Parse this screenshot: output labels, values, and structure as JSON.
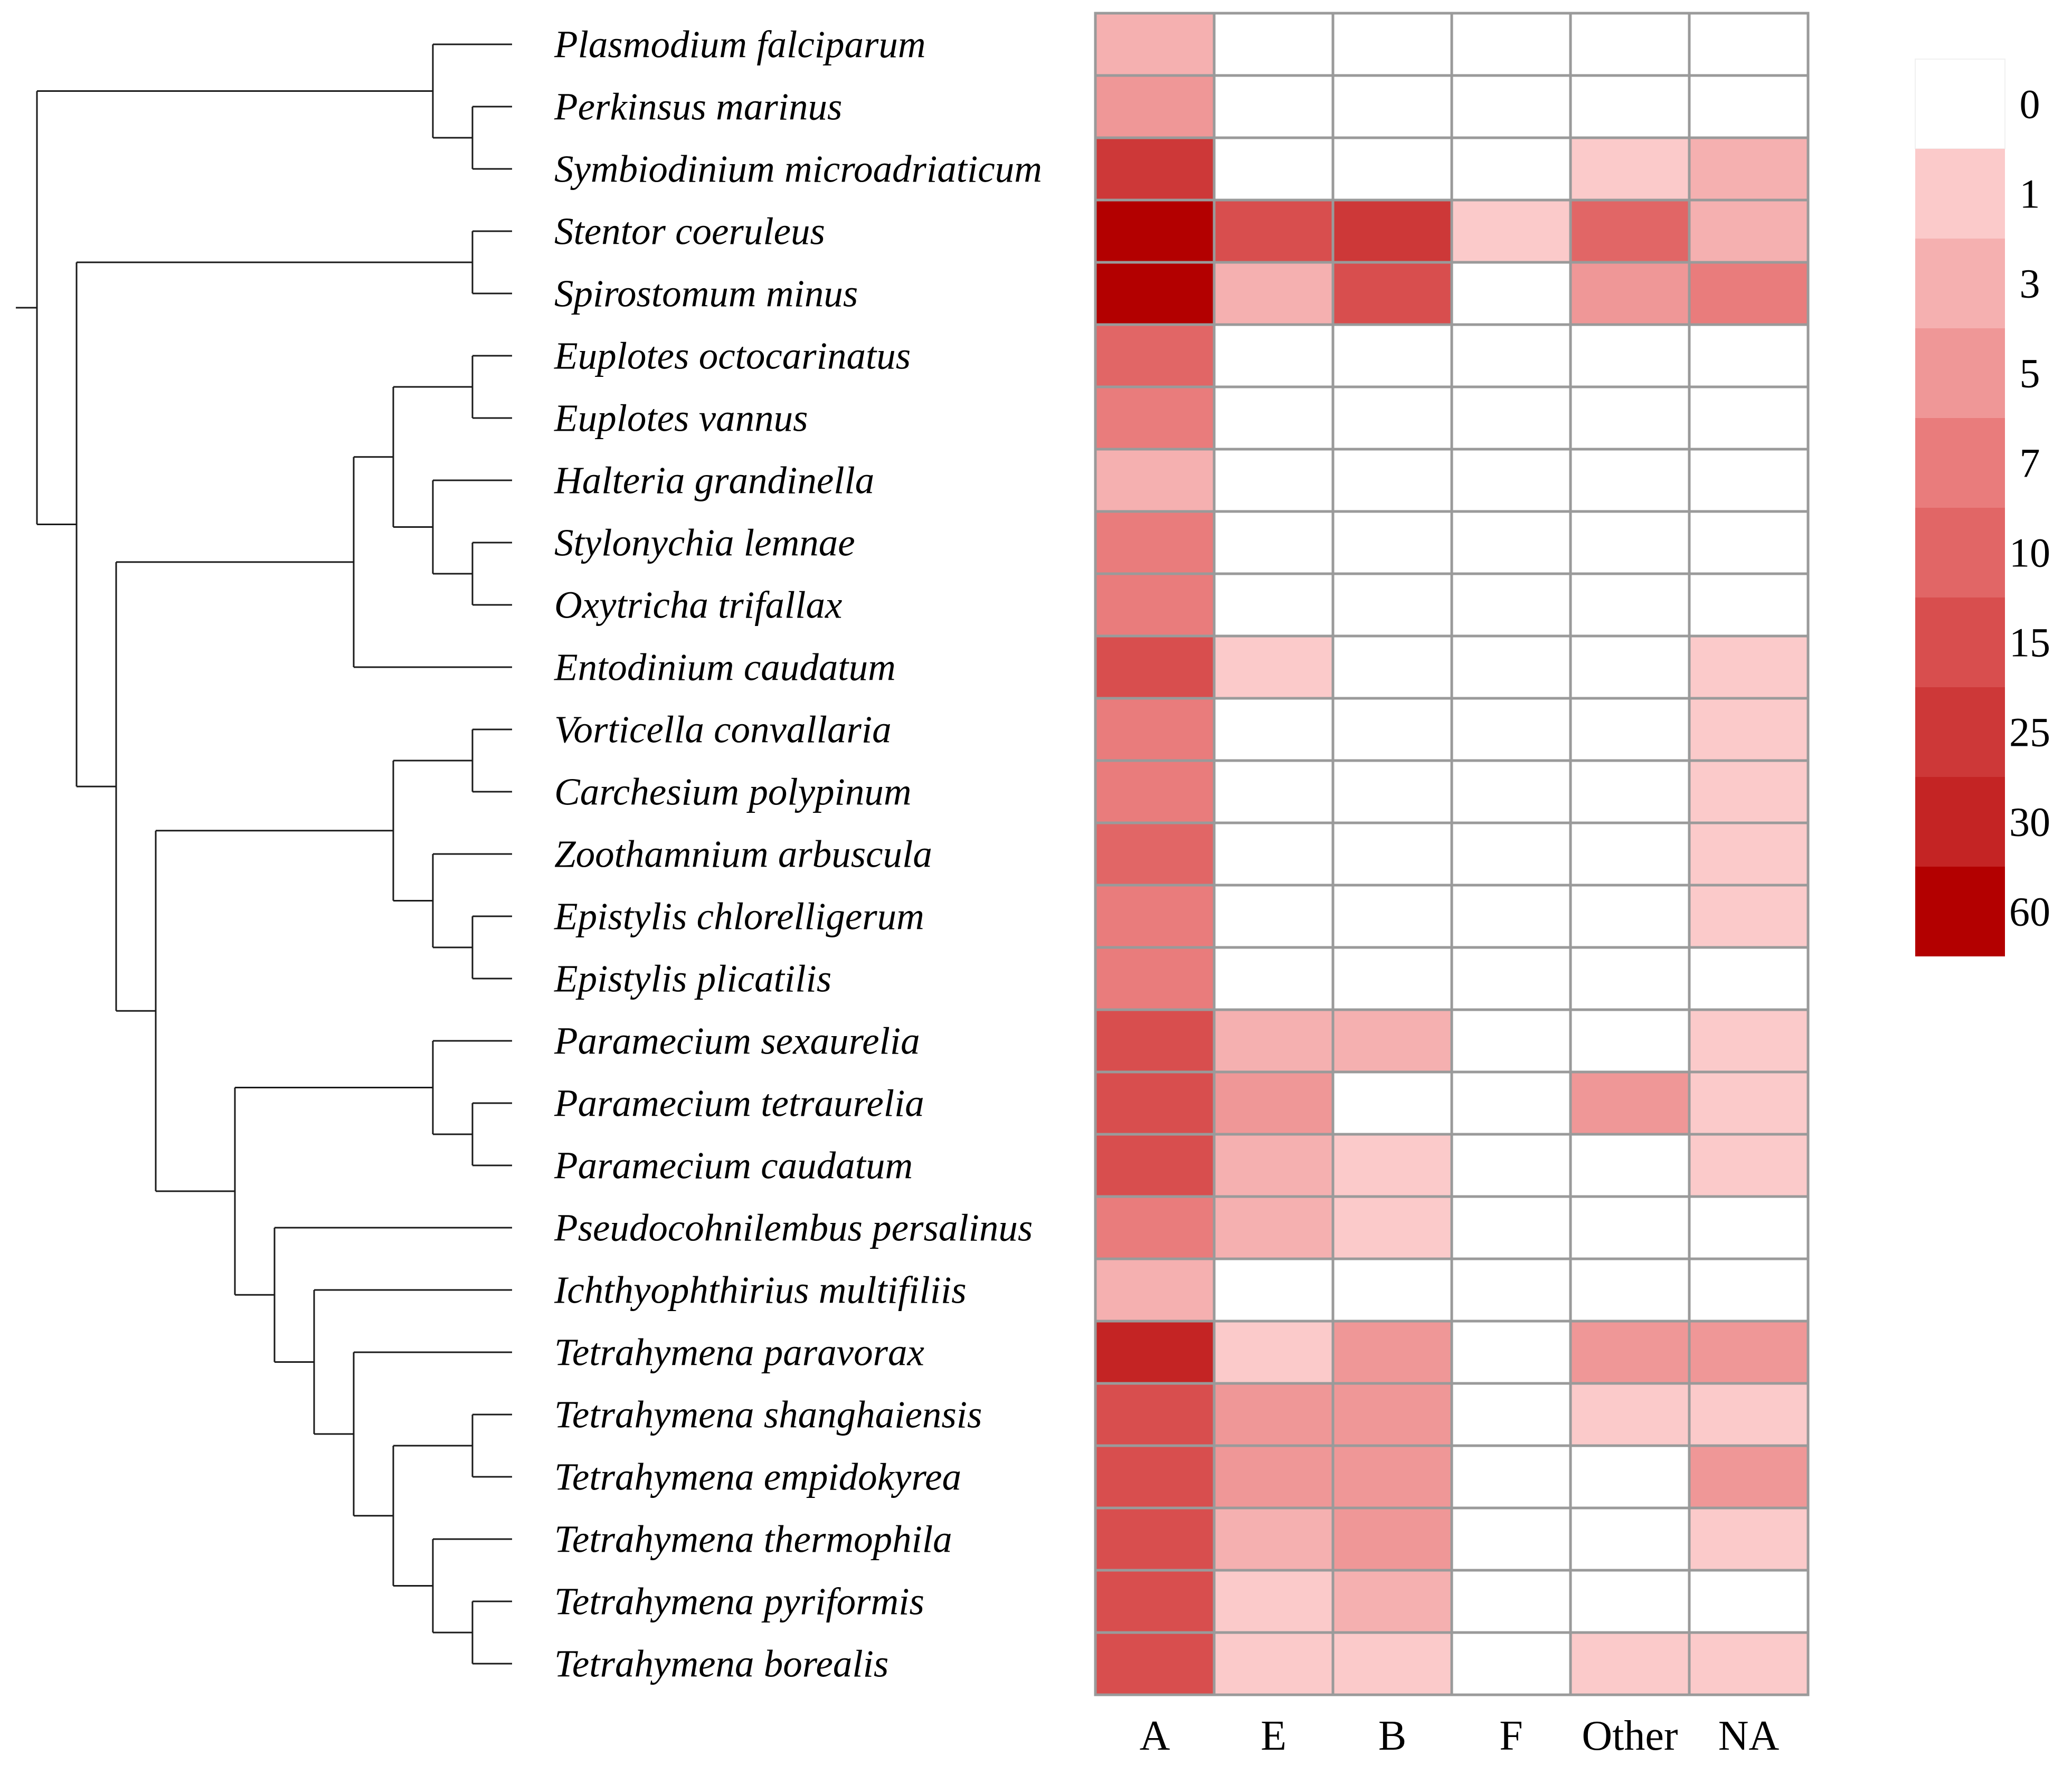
{
  "chart_data": {
    "type": "heatmap",
    "columns": [
      "A",
      "E",
      "B",
      "F",
      "Other",
      "NA"
    ],
    "rows": [
      "Plasmodium falciparum",
      "Perkinsus marinus",
      "Symbiodinium microadriaticum",
      "Stentor coeruleus",
      "Spirostomum minus",
      "Euplotes octocarinatus",
      "Euplotes vannus",
      "Halteria grandinella",
      "Stylonychia lemnae",
      "Oxytricha trifallax",
      "Entodinium caudatum",
      "Vorticella convallaria",
      "Carchesium polypinum",
      "Zoothamnium arbuscula",
      "Epistylis chlorelligerum",
      "Epistylis plicatilis",
      "Paramecium sexaurelia",
      "Paramecium tetraurelia",
      "Paramecium caudatum",
      "Pseudocohnilembus persalinus",
      "Ichthyophthirius multifiliis",
      "Tetrahymena paravorax",
      "Tetrahymena shanghaiensis",
      "Tetrahymena empidokyrea",
      "Tetrahymena thermophila",
      "Tetrahymena pyriformis",
      "Tetrahymena borealis"
    ],
    "values": [
      [
        4,
        0,
        0,
        0,
        0,
        0
      ],
      [
        6,
        0,
        0,
        0,
        0,
        0
      ],
      [
        28,
        0,
        0,
        0,
        1,
        4
      ],
      [
        70,
        20,
        27,
        1,
        12,
        4
      ],
      [
        70,
        4,
        15,
        0,
        6,
        9
      ],
      [
        10,
        0,
        0,
        0,
        0,
        0
      ],
      [
        8,
        0,
        0,
        0,
        0,
        0
      ],
      [
        4,
        0,
        0,
        0,
        0,
        0
      ],
      [
        7,
        0,
        0,
        0,
        0,
        0
      ],
      [
        7,
        0,
        0,
        0,
        0,
        0
      ],
      [
        20,
        1,
        0,
        0,
        0,
        1
      ],
      [
        8,
        0,
        0,
        0,
        0,
        1
      ],
      [
        7,
        0,
        0,
        0,
        0,
        1
      ],
      [
        10,
        0,
        0,
        0,
        0,
        1
      ],
      [
        8,
        0,
        0,
        0,
        0,
        1
      ],
      [
        8,
        0,
        0,
        0,
        0,
        0
      ],
      [
        15,
        4,
        4,
        0,
        0,
        1
      ],
      [
        22,
        6,
        0,
        0,
        6,
        1
      ],
      [
        22,
        4,
        1,
        0,
        0,
        1
      ],
      [
        8,
        4,
        1,
        0,
        0,
        0
      ],
      [
        4,
        0,
        0,
        0,
        0,
        0
      ],
      [
        30,
        1,
        6,
        0,
        5,
        5
      ],
      [
        15,
        5,
        5,
        0,
        1,
        1
      ],
      [
        20,
        5,
        5,
        0,
        0,
        6
      ],
      [
        17,
        4,
        6,
        0,
        0,
        1
      ],
      [
        20,
        1,
        4,
        0,
        0,
        0
      ],
      [
        20,
        1,
        1,
        0,
        1,
        1
      ]
    ],
    "legend": {
      "labels": [
        "0",
        "1",
        "3",
        "5",
        "7",
        "10",
        "15",
        "25",
        "30",
        "60"
      ],
      "bins": [
        0,
        1,
        3,
        5,
        7,
        10,
        15,
        25,
        30,
        60
      ],
      "colors": [
        "#ffffff",
        "#fbcaca",
        "#f5b0b0",
        "#ef9797",
        "#e97c7c",
        "#e16666",
        "#d84e4e",
        "#cd3838",
        "#c42424",
        "#b30000"
      ],
      "placement": "right"
    },
    "tree_newick": "((Plasmodium_falciparum,(Perkinsus_marinus,Symbiodinium_microadriaticum)),((Stentor_coeruleus,Spirostomum_minus),((((Euplotes_octocarinatus,Euplotes_vannus),(Halteria_grandinella,(Stylonychia_lemnae,Oxytricha_trifallax))),Entodinium_caudatum),(((Vorticella_convallaria,Carchesium_polypinum),(Zoothamnium_arbuscula,(Epistylis_chlorelligerum,Epistylis_plicatilis))),(((Paramecium_sexaurelia,(Paramecium_tetraurelia,Paramecium_caudatum)),(Pseudocohnilembus_persalinus,(Ichthyophthirius_multifiliis,(Tetrahymena_paravorax,((Tetrahymena_shanghaiensis,Tetrahymena_empidokyrea),(Tetrahymena_thermophila,(Tetrahymena_pyriformis,Tetrahymena_borealis))))))))))));"
  }
}
